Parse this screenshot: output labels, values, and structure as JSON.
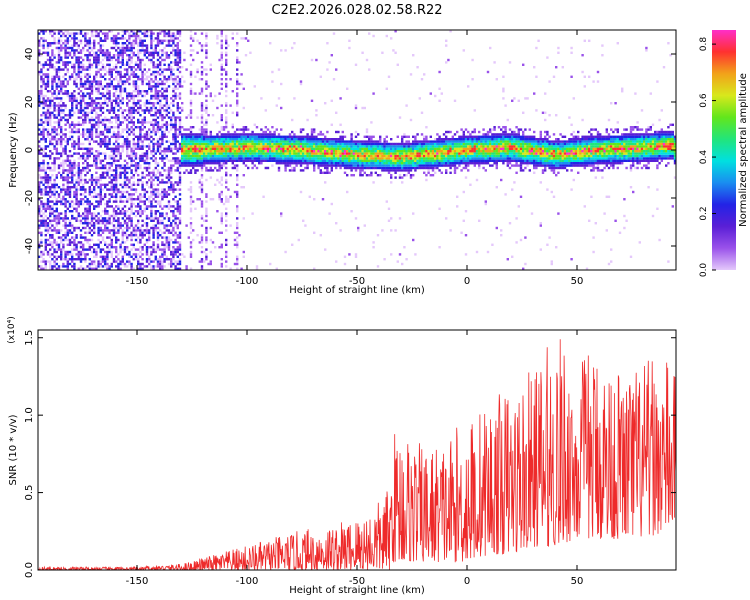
{
  "figure_title": "C2E2.2026.028.02.58.R22",
  "colors": {
    "snr_line": "#ee2a2a",
    "colormap": [
      "#ffffff",
      "#e4c8fb",
      "#9a52ea",
      "#5a1fd6",
      "#2323e6",
      "#1a8df0",
      "#00e0e0",
      "#22e57a",
      "#62e61c",
      "#d8e81c",
      "#f2a21a",
      "#ff3030",
      "#ff2ec8"
    ]
  },
  "chart_data": [
    {
      "type": "heatmap",
      "title": "C2E2.2026.028.02.58.R22",
      "xlabel": "Height of straight line (km)",
      "ylabel": "Frequency (Hz)",
      "xlim": [
        -195,
        95
      ],
      "ylim": [
        -50,
        50
      ],
      "x_ticks": [
        -150,
        -100,
        -50,
        0,
        50
      ],
      "y_ticks": [
        -40,
        -20,
        0,
        20,
        40
      ],
      "colorbar": {
        "label": "Normalized spectral amplitude",
        "range": [
          0.0,
          0.85
        ],
        "ticks": [
          "0.0",
          "0.2",
          "0.4",
          "0.6",
          "0.8"
        ]
      },
      "regions": [
        {
          "x_range": [
            -195,
            -130
          ],
          "freq_range": [
            -50,
            50
          ],
          "amplitude": "0.1-0.3",
          "note": "broadband noise"
        },
        {
          "x_range": [
            -130,
            -100
          ],
          "freq_range": [
            -50,
            50
          ],
          "amplitude": "0.05-0.2",
          "note": "sparse vertical streaks"
        },
        {
          "x_range": [
            -130,
            95
          ],
          "freq_range": [
            -8,
            8
          ],
          "amplitude": "0.3-0.85",
          "note": "signal band centered near 0 Hz"
        }
      ],
      "signal_peak_frequency": [
        {
          "x": -125,
          "f": 0
        },
        {
          "x": -100,
          "f": 1
        },
        {
          "x": -75,
          "f": 0
        },
        {
          "x": -50,
          "f": -2
        },
        {
          "x": -30,
          "f": -3
        },
        {
          "x": -10,
          "f": -1
        },
        {
          "x": 0,
          "f": 0
        },
        {
          "x": 20,
          "f": 1
        },
        {
          "x": 40,
          "f": -2
        },
        {
          "x": 60,
          "f": 0
        },
        {
          "x": 80,
          "f": 1
        },
        {
          "x": 93,
          "f": 2
        }
      ]
    },
    {
      "type": "line",
      "xlabel": "Height of straight line (km)",
      "ylabel": "SNR (10 * v/v)",
      "y_multiplier": "(x10⁴)",
      "xlim": [
        -195,
        95
      ],
      "ylim": [
        0,
        1.55
      ],
      "x_ticks": [
        -150,
        -100,
        -50,
        0,
        50
      ],
      "y_ticks": [
        "0.0",
        "0.5",
        "1.0",
        "1.5"
      ],
      "envelope": {
        "x": [
          -195,
          -150,
          -130,
          -120,
          -110,
          -100,
          -90,
          -80,
          -70,
          -60,
          -50,
          -40,
          -35,
          -34,
          -30,
          -20,
          -10,
          0,
          10,
          20,
          30,
          40,
          50,
          60,
          70,
          80,
          90,
          95
        ],
        "lower": [
          0.0,
          0.0,
          0.0,
          0.0,
          0.0,
          0.0,
          0.0,
          0.0,
          0.0,
          0.0,
          0.0,
          0.0,
          0.0,
          0.05,
          0.05,
          0.05,
          0.05,
          0.05,
          0.1,
          0.1,
          0.15,
          0.15,
          0.2,
          0.2,
          0.2,
          0.2,
          0.25,
          0.3
        ],
        "upper": [
          0.02,
          0.02,
          0.04,
          0.08,
          0.12,
          0.16,
          0.2,
          0.24,
          0.28,
          0.3,
          0.35,
          0.45,
          0.55,
          0.9,
          0.95,
          0.8,
          0.85,
          1.0,
          1.1,
          1.2,
          1.3,
          1.55,
          1.4,
          1.45,
          1.3,
          1.35,
          1.4,
          1.25
        ]
      }
    }
  ]
}
